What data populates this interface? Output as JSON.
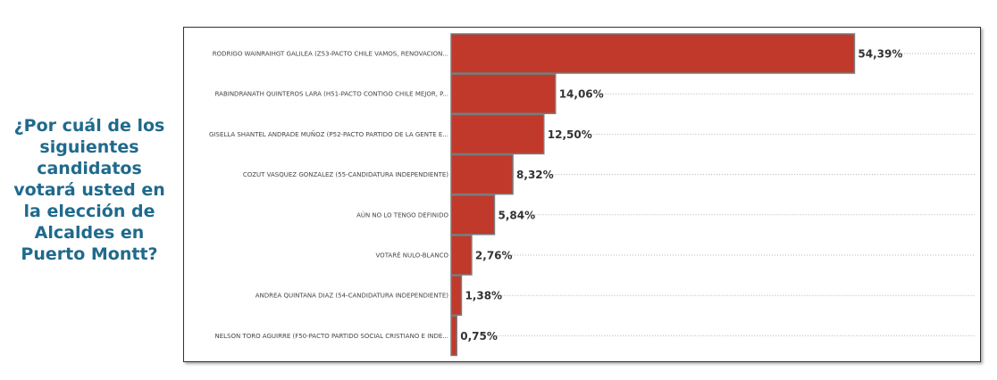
{
  "question": "¿Por cuál de los siguientes candidatos votará usted en la elección de Alcaldes en Puerto Montt?",
  "colors": {
    "bar": "#c0392b",
    "bar_border": "#7a7a7a",
    "question": "#1f6a8c",
    "gridline": "#b0b0b0"
  },
  "chart_data": {
    "type": "bar",
    "orientation": "horizontal",
    "categories": [
      "RODRIGO WAINRAIHGT GALILEA (Z53-PACTO CHILE VAMOS, RENOVACION...",
      "RABINDRANATH QUINTEROS LARA (H51-PACTO CONTIGO CHILE MEJOR, P...",
      "GISELLA SHANTEL ANDRADE MUÑOZ (P52-PACTO PARTIDO DE LA GENTE E...",
      "COZUT VASQUEZ GONZALEZ (55-CANDIDATURA INDEPENDIENTE)",
      "AÚN NO LO TENGO DEFINIDO",
      "VOTARÉ NULO-BLANCO",
      "ANDREA QUINTANA DIAZ (54-CANDIDATURA INDEPENDIENTE)",
      "NELSON TORO AGUIRRE (F50-PACTO PARTIDO SOCIAL CRISTIANO E INDE..."
    ],
    "values": [
      54.39,
      14.06,
      12.5,
      8.32,
      5.84,
      2.76,
      1.38,
      0.75
    ],
    "value_labels": [
      "54,39%",
      "14,06%",
      "12,50%",
      "8,32%",
      "5,84%",
      "2,76%",
      "1,38%",
      "0,75%"
    ],
    "xlim": [
      0,
      56
    ],
    "title": "",
    "xlabel": "",
    "ylabel": "",
    "grid": "dotted row guide lines",
    "legend": "none"
  }
}
